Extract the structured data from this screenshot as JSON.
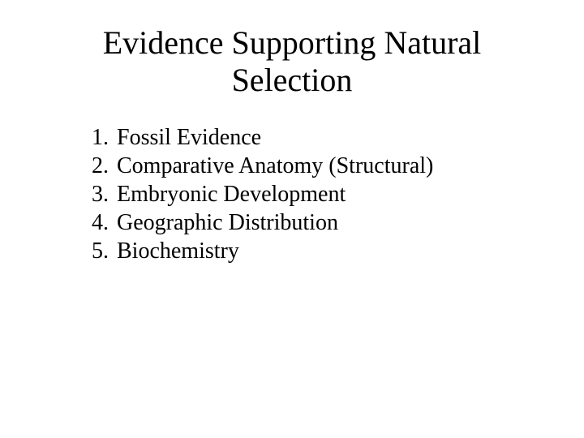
{
  "title": "Evidence Supporting Natural Selection",
  "title_fontsize": 40,
  "body_fontsize": 28,
  "text_color": "#000000",
  "background_color": "#ffffff",
  "font_family": "Times New Roman",
  "items": [
    {
      "num": "1.",
      "text": "Fossil Evidence"
    },
    {
      "num": "2.",
      "text": "Comparative Anatomy (Structural)"
    },
    {
      "num": "3.",
      "text": "Embryonic Development"
    },
    {
      "num": "4.",
      "text": "Geographic Distribution"
    },
    {
      "num": "5.",
      "text": "Biochemistry"
    }
  ]
}
